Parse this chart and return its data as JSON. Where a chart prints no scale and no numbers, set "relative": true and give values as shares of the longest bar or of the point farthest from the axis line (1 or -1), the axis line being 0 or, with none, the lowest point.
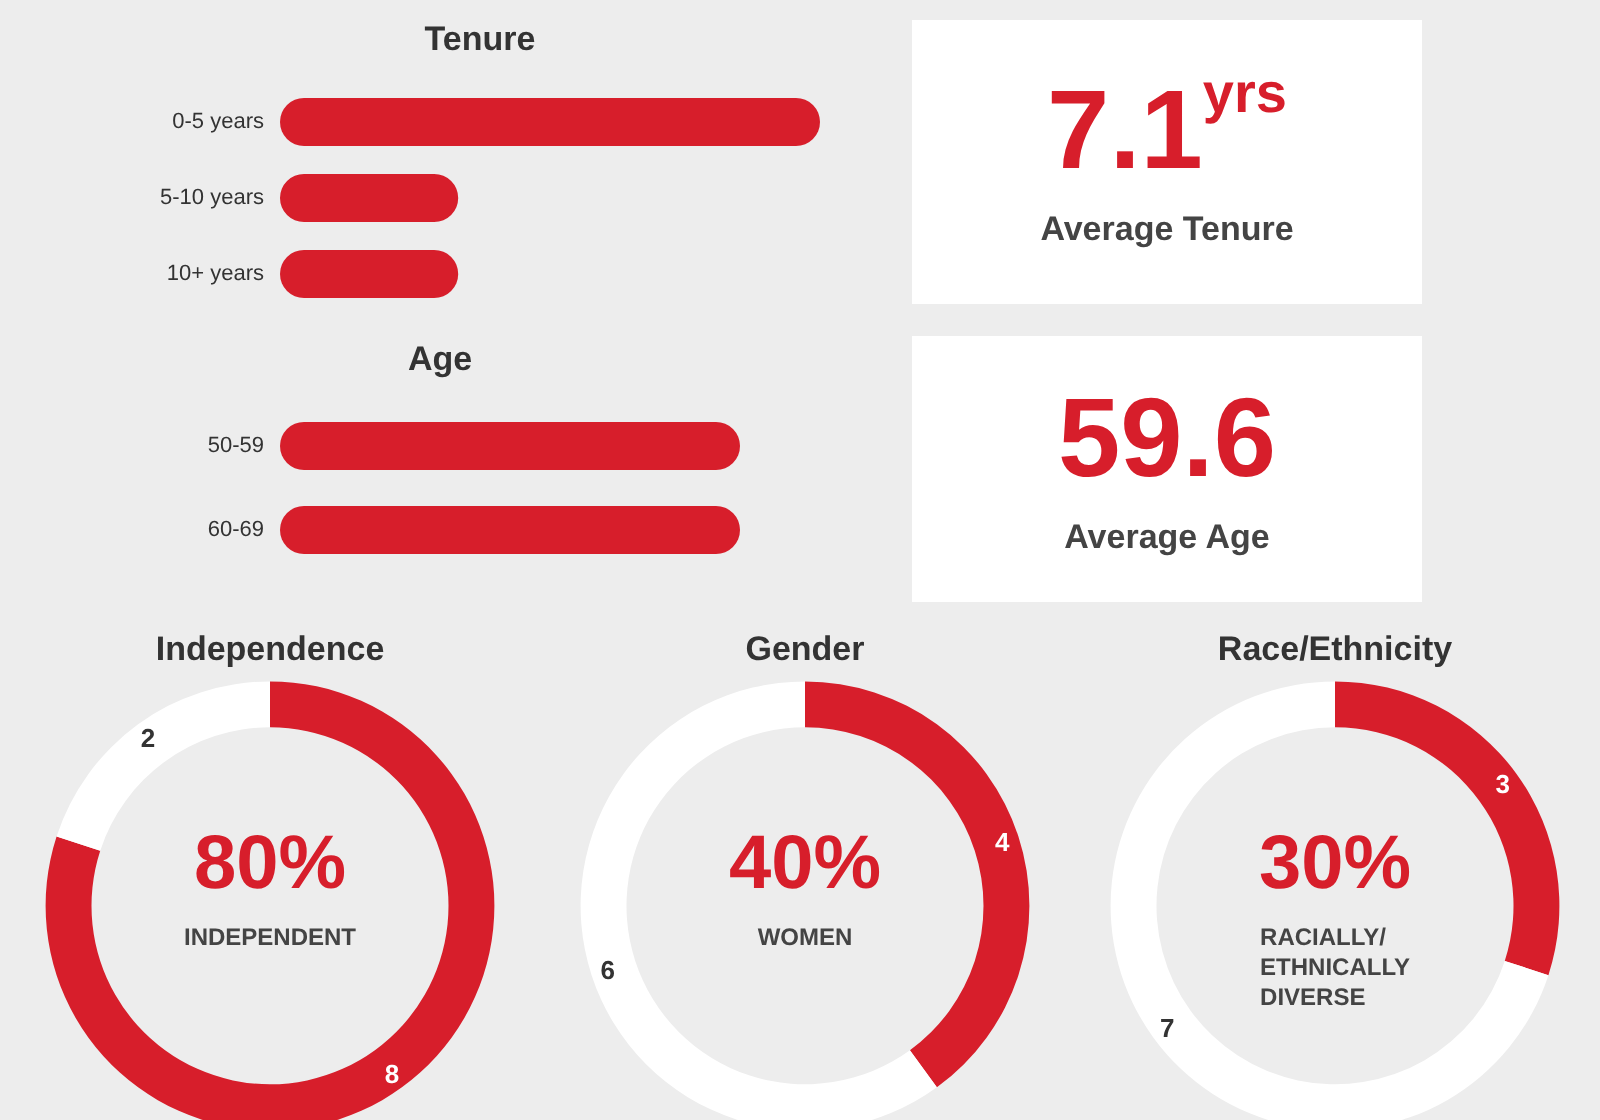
{
  "chart_data": [
    {
      "type": "bar",
      "title": "Tenure",
      "orientation": "horizontal",
      "relative": true,
      "categories": [
        "0-5 years",
        "5-10 years",
        "10+ years"
      ],
      "values": [
        1,
        0.33,
        0.33
      ],
      "color": "#d71e2b"
    },
    {
      "type": "bar",
      "title": "Age",
      "orientation": "horizontal",
      "relative": true,
      "categories": [
        "50-59",
        "60-69"
      ],
      "values": [
        1,
        1
      ],
      "color": "#d71e2b"
    },
    {
      "type": "other",
      "title": "7.1$^{yrs}$",
      "subtitle": "Average Tenure"
    },
    {
      "type": "other",
      "title": "59.6",
      "subtitle": "Average Age"
    },
    {
      "type": "donut",
      "title": "Independence",
      "categories": [
        null,
        null
      ],
      "values": [
        8,
        2
      ],
      "colors": [
        "#d71e2b",
        "#ffffff"
      ],
      "data_labels": true,
      "annotations": [
        "80%",
        "INDEPENDENT"
      ]
    },
    {
      "type": "donut",
      "title": "Gender",
      "categories": [
        null,
        null
      ],
      "values": [
        4,
        6
      ],
      "colors": [
        "#d71e2b",
        "#ffffff"
      ],
      "data_labels": true,
      "annotations": [
        "40%",
        "WOMEN"
      ]
    },
    {
      "type": "donut",
      "title": "Race/Ethnicity",
      "categories": [
        null,
        null
      ],
      "values": [
        3,
        7
      ],
      "colors": [
        "#d71e2b",
        "#ffffff"
      ],
      "data_labels": true,
      "annotations": [
        "30%",
        "RACIALLY/\nETHNICALLY\nDIVERSE"
      ]
    }
  ]
}
